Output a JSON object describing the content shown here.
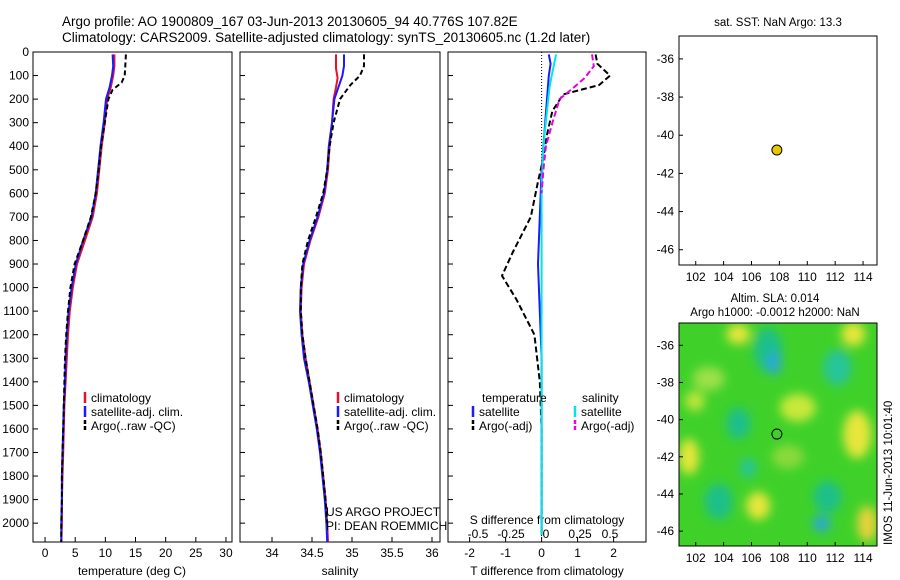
{
  "header": {
    "line1": "Argo profile: AO 1900809_167 03-Jun-2013 20130605_94 40.776S 107.82E",
    "line2": "Climatology: CARS2009. Satellite-adjusted climatology: synTS_20130605.nc (1.2d later)"
  },
  "colors": {
    "climatology": "#e8112d",
    "satellite": "#1a1aff",
    "argo": "#000000",
    "satellite_salinity": "#00e5e5",
    "argo_salinity_adj": "#e600e6",
    "marker": "#e6c800"
  },
  "chart_data": [
    {
      "type": "line",
      "panel": "temperature",
      "xlabel": "temperature (deg C)",
      "xticks": [
        "0",
        "5",
        "10",
        "15",
        "20",
        "25",
        "30"
      ],
      "xlim": [
        -2,
        31
      ],
      "ylim": [
        2080,
        0
      ],
      "yticks": [
        "0",
        "100",
        "200",
        "300",
        "400",
        "500",
        "600",
        "700",
        "800",
        "900",
        "1000",
        "1100",
        "1200",
        "1300",
        "1400",
        "1500",
        "1600",
        "1700",
        "1800",
        "1900",
        "2000"
      ],
      "legend": [
        "climatology",
        "satellite-adj. clim.",
        "Argo(..raw -QC)"
      ],
      "series": [
        {
          "name": "climatology",
          "points": [
            [
              11.5,
              10
            ],
            [
              11.5,
              60
            ],
            [
              11.3,
              100
            ],
            [
              10.9,
              150
            ],
            [
              10.3,
              200
            ],
            [
              9.9,
              300
            ],
            [
              9.4,
              400
            ],
            [
              9.0,
              500
            ],
            [
              8.6,
              600
            ],
            [
              7.9,
              700
            ],
            [
              6.6,
              800
            ],
            [
              5.3,
              900
            ],
            [
              4.6,
              1000
            ],
            [
              4.1,
              1100
            ],
            [
              3.8,
              1200
            ],
            [
              3.6,
              1300
            ],
            [
              3.4,
              1400
            ],
            [
              3.2,
              1500
            ],
            [
              3.1,
              1600
            ],
            [
              3.0,
              1700
            ],
            [
              2.9,
              1800
            ],
            [
              2.8,
              1900
            ],
            [
              2.8,
              2000
            ],
            [
              2.7,
              2080
            ]
          ]
        },
        {
          "name": "satellite-adj. clim.",
          "points": [
            [
              11.2,
              10
            ],
            [
              11.3,
              60
            ],
            [
              11.1,
              100
            ],
            [
              10.7,
              150
            ],
            [
              10.1,
              200
            ],
            [
              9.7,
              300
            ],
            [
              9.2,
              400
            ],
            [
              8.8,
              500
            ],
            [
              8.4,
              600
            ],
            [
              7.7,
              700
            ],
            [
              6.3,
              800
            ],
            [
              5.1,
              900
            ],
            [
              4.4,
              1000
            ],
            [
              3.9,
              1100
            ],
            [
              3.6,
              1200
            ],
            [
              3.4,
              1300
            ],
            [
              3.3,
              1400
            ],
            [
              3.1,
              1500
            ],
            [
              3.0,
              1600
            ],
            [
              2.9,
              1700
            ],
            [
              2.8,
              1800
            ],
            [
              2.8,
              1900
            ],
            [
              2.7,
              2000
            ],
            [
              2.7,
              2080
            ]
          ]
        },
        {
          "name": "Argo(..raw -QC)",
          "points": [
            [
              13.4,
              10
            ],
            [
              13.3,
              60
            ],
            [
              13.2,
              100
            ],
            [
              12.7,
              130
            ],
            [
              11.2,
              160
            ],
            [
              10.5,
              200
            ],
            [
              9.9,
              300
            ],
            [
              9.3,
              400
            ],
            [
              8.9,
              500
            ],
            [
              8.4,
              600
            ],
            [
              7.6,
              700
            ],
            [
              6.3,
              800
            ],
            [
              4.9,
              900
            ],
            [
              4.2,
              1000
            ],
            [
              3.8,
              1100
            ],
            [
              3.5,
              1200
            ],
            [
              3.3,
              1300
            ],
            [
              3.2,
              1400
            ],
            [
              3.1,
              1500
            ],
            [
              3.0,
              1600
            ],
            [
              2.9,
              1700
            ],
            [
              2.8,
              1800
            ],
            [
              2.8,
              1900
            ],
            [
              2.7,
              2000
            ],
            [
              2.7,
              2080
            ]
          ]
        }
      ]
    },
    {
      "type": "line",
      "panel": "salinity",
      "xlabel": "salinity",
      "xticks": [
        "34",
        "34.5",
        "35",
        "35.5",
        "36"
      ],
      "xlim": [
        33.6,
        36.1
      ],
      "ylim": [
        2080,
        0
      ],
      "legend": [
        "climatology",
        "satellite-adj. clim.",
        "Argo(..raw -QC)"
      ],
      "annotation": [
        "US ARGO PROJECT",
        "PI: DEAN ROEMMICH"
      ],
      "series": [
        {
          "name": "climatology",
          "points": [
            [
              34.8,
              10
            ],
            [
              34.8,
              70
            ],
            [
              34.82,
              110
            ],
            [
              34.8,
              150
            ],
            [
              34.77,
              200
            ],
            [
              34.75,
              300
            ],
            [
              34.72,
              400
            ],
            [
              34.7,
              500
            ],
            [
              34.66,
              600
            ],
            [
              34.58,
              700
            ],
            [
              34.48,
              800
            ],
            [
              34.4,
              900
            ],
            [
              34.37,
              1000
            ],
            [
              34.36,
              1100
            ],
            [
              34.38,
              1200
            ],
            [
              34.42,
              1300
            ],
            [
              34.47,
              1400
            ],
            [
              34.52,
              1500
            ],
            [
              34.57,
              1600
            ],
            [
              34.61,
              1700
            ],
            [
              34.64,
              1800
            ],
            [
              34.67,
              1900
            ],
            [
              34.69,
              2000
            ],
            [
              34.7,
              2080
            ]
          ]
        },
        {
          "name": "satellite-adj. clim.",
          "points": [
            [
              34.9,
              10
            ],
            [
              34.9,
              60
            ],
            [
              34.88,
              100
            ],
            [
              34.83,
              150
            ],
            [
              34.78,
              200
            ],
            [
              34.75,
              300
            ],
            [
              34.71,
              400
            ],
            [
              34.69,
              500
            ],
            [
              34.65,
              600
            ],
            [
              34.57,
              700
            ],
            [
              34.47,
              800
            ],
            [
              34.39,
              900
            ],
            [
              34.36,
              1000
            ],
            [
              34.35,
              1100
            ],
            [
              34.37,
              1200
            ],
            [
              34.4,
              1300
            ],
            [
              34.46,
              1400
            ],
            [
              34.51,
              1500
            ],
            [
              34.56,
              1600
            ],
            [
              34.6,
              1700
            ],
            [
              34.63,
              1800
            ],
            [
              34.66,
              1900
            ],
            [
              34.68,
              2000
            ],
            [
              34.69,
              2080
            ]
          ]
        },
        {
          "name": "Argo(..raw -QC)",
          "points": [
            [
              35.15,
              10
            ],
            [
              35.15,
              60
            ],
            [
              35.1,
              100
            ],
            [
              34.98,
              140
            ],
            [
              34.85,
              200
            ],
            [
              34.77,
              300
            ],
            [
              34.72,
              400
            ],
            [
              34.69,
              500
            ],
            [
              34.64,
              600
            ],
            [
              34.55,
              700
            ],
            [
              34.45,
              800
            ],
            [
              34.38,
              900
            ],
            [
              34.36,
              1000
            ],
            [
              34.36,
              1100
            ],
            [
              34.38,
              1200
            ],
            [
              34.42,
              1300
            ],
            [
              34.47,
              1400
            ],
            [
              34.52,
              1500
            ],
            [
              34.57,
              1600
            ],
            [
              34.61,
              1700
            ],
            [
              34.64,
              1800
            ],
            [
              34.67,
              1900
            ],
            [
              34.69,
              2000
            ]
          ]
        }
      ]
    },
    {
      "type": "line",
      "panel": "difference",
      "xlabel": "T difference from climatology",
      "xlabel2": "S difference from climatology",
      "xticks": [
        "-2",
        "-1",
        "0",
        "1",
        "2"
      ],
      "xticks2": [
        "-0.5",
        "-0.25",
        "0",
        "0.25",
        "0.5"
      ],
      "xlim": [
        -2.6,
        2.9
      ],
      "ylim": [
        2080,
        0
      ],
      "legend_titles": [
        "temperature",
        "salinity"
      ],
      "legend": [
        "satellite",
        "Argo(-adj)",
        "satellite",
        "Argo(-adj)"
      ],
      "series": [
        {
          "name": "T satellite",
          "points": [
            [
              0.2,
              10
            ],
            [
              0.25,
              50
            ],
            [
              0.2,
              100
            ],
            [
              0.15,
              200
            ],
            [
              0.1,
              300
            ],
            [
              0.05,
              400
            ],
            [
              0.0,
              500
            ],
            [
              -0.05,
              700
            ],
            [
              -0.1,
              900
            ],
            [
              -0.05,
              1100
            ],
            [
              0.0,
              1300
            ],
            [
              0.0,
              1500
            ],
            [
              0.0,
              1700
            ],
            [
              0.0,
              2050
            ]
          ]
        },
        {
          "name": "T Argo(-adj)",
          "points": [
            [
              1.5,
              10
            ],
            [
              1.55,
              50
            ],
            [
              1.9,
              100
            ],
            [
              1.6,
              140
            ],
            [
              0.6,
              180
            ],
            [
              0.3,
              250
            ],
            [
              0.15,
              350
            ],
            [
              0.05,
              450
            ],
            [
              -0.1,
              550
            ],
            [
              -0.3,
              700
            ],
            [
              -0.8,
              850
            ],
            [
              -1.1,
              950
            ],
            [
              -0.7,
              1050
            ],
            [
              -0.2,
              1200
            ],
            [
              -0.05,
              1400
            ],
            [
              0.0,
              1600
            ],
            [
              0.0,
              1800
            ],
            [
              0.0,
              2050
            ]
          ]
        },
        {
          "name": "S satellite",
          "points": [
            [
              0.4,
              10
            ],
            [
              0.35,
              50
            ],
            [
              0.28,
              100
            ],
            [
              0.22,
              150
            ],
            [
              0.15,
              250
            ],
            [
              0.08,
              350
            ],
            [
              0.03,
              450
            ],
            [
              0.0,
              600
            ],
            [
              0.0,
              900
            ],
            [
              0.0,
              1200
            ],
            [
              0.0,
              1500
            ],
            [
              0.0,
              1800
            ],
            [
              0.0,
              2050
            ]
          ]
        },
        {
          "name": "S Argo(-adj)",
          "points": [
            [
              1.4,
              10
            ],
            [
              1.45,
              60
            ],
            [
              1.2,
              110
            ],
            [
              0.9,
              150
            ],
            [
              0.5,
              200
            ],
            [
              0.3,
              300
            ],
            [
              0.12,
              400
            ],
            [
              0.05,
              500
            ],
            [
              0.0,
              600
            ]
          ]
        }
      ]
    },
    {
      "type": "scatter",
      "panel": "location",
      "title": "sat. SST: NaN Argo: 13.3",
      "xticks": [
        "102",
        "104",
        "106",
        "108",
        "110",
        "112",
        "114"
      ],
      "yticks": [
        "-36",
        "-38",
        "-40",
        "-42",
        "-44",
        "-46"
      ],
      "xlim": [
        100.8,
        115
      ],
      "ylim": [
        -34.8,
        -46.8
      ],
      "points": [
        [
          107.82,
          -40.776
        ]
      ]
    },
    {
      "type": "heatmap",
      "panel": "altimetry",
      "title": "Altim. SLA: 0.014",
      "title2": "Argo h1000: -0.0012 h2000: NaN",
      "xticks": [
        "102",
        "104",
        "106",
        "108",
        "110",
        "112",
        "114"
      ],
      "yticks": [
        "-36",
        "-38",
        "-40",
        "-42",
        "-44",
        "-46"
      ],
      "xlim": [
        100.8,
        115
      ],
      "ylim": [
        -34.8,
        -46.8
      ],
      "points": [
        [
          107.82,
          -40.776
        ]
      ],
      "side_label": "IMOS 11-Jun-2013 10:01:40"
    }
  ]
}
